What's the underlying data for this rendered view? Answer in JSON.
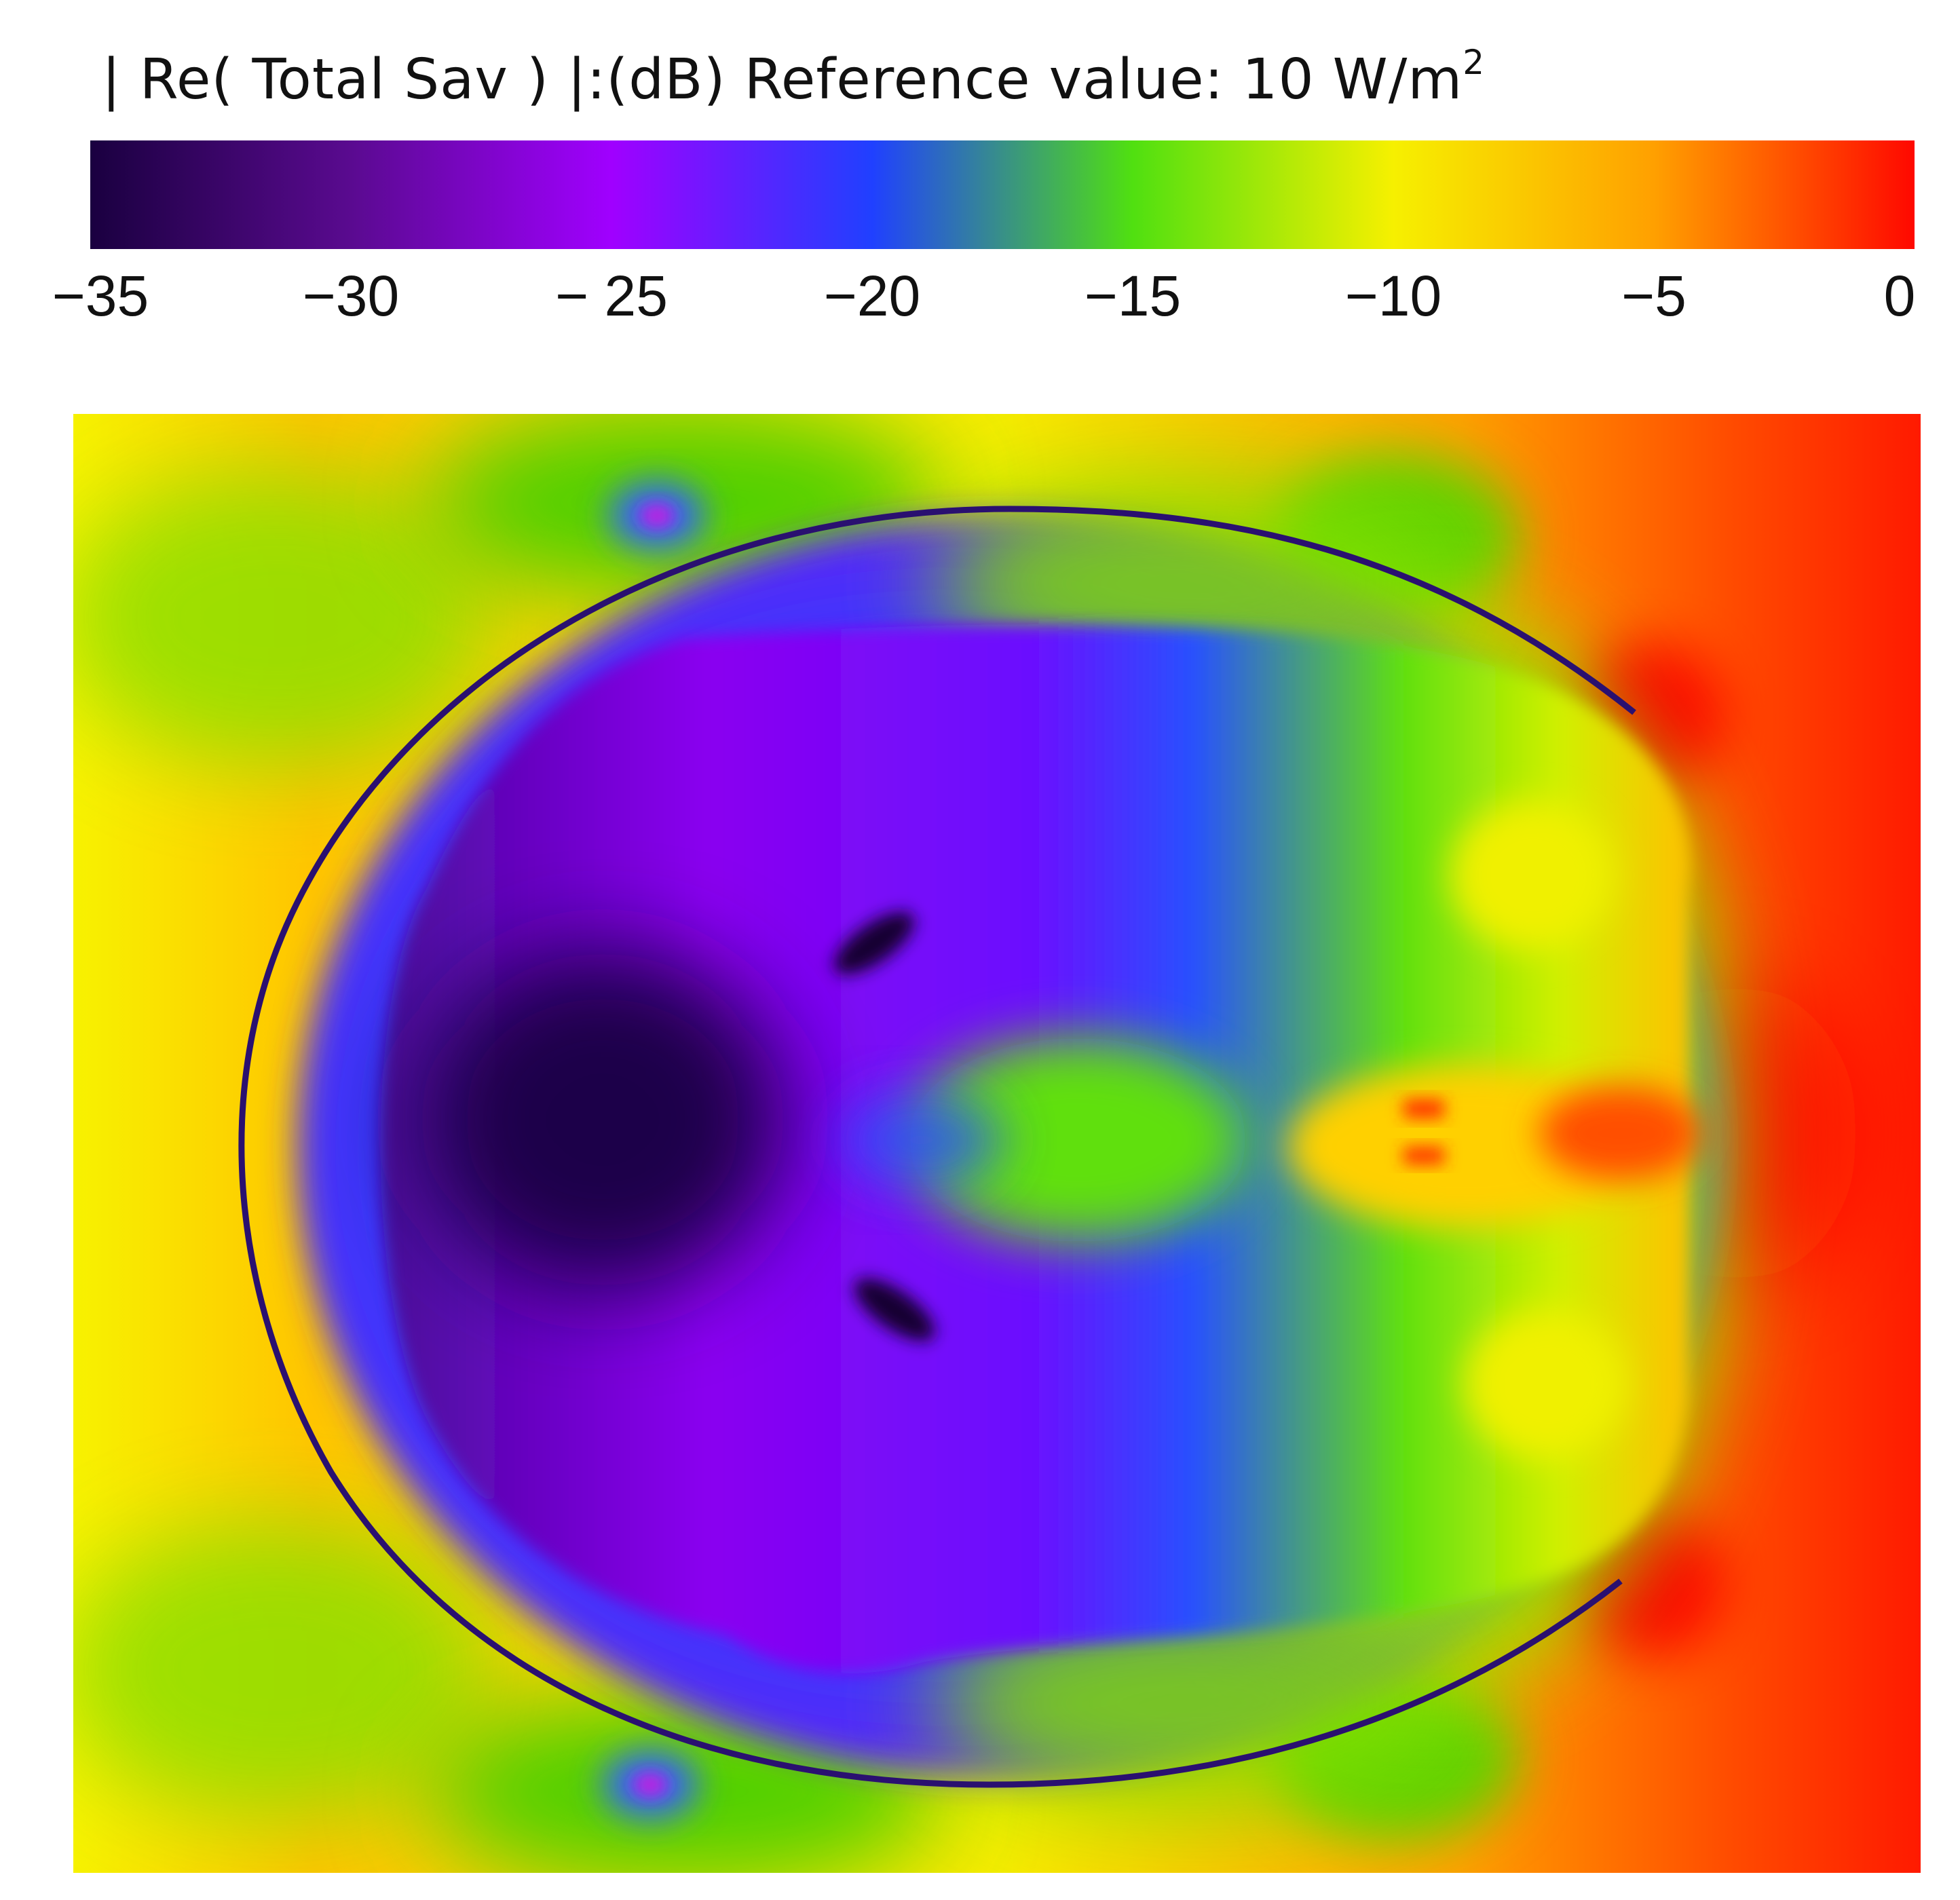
{
  "colorbar": {
    "title_main": "| Re( Total Sav ) |:(dB) Reference value: 10 W/m",
    "title_sup": "2",
    "range": [
      -35,
      0
    ],
    "tick_labels": [
      "−35",
      "−30",
      "− 25",
      "−20",
      "−15",
      "−10",
      "−5",
      "0"
    ],
    "colormap": [
      "#1a0040",
      "#5a0a90",
      "#a000ff",
      "#2040ff",
      "#50e010",
      "#f6f000",
      "#ffa000",
      "#ff0800"
    ]
  },
  "chart_data": {
    "type": "heatmap",
    "title": "| Re( Total Sav ) |:(dB) Reference value: 10 W/m2",
    "quantity": "| Re( Total Sav ) |",
    "unit": "dB",
    "reference_value": "10 W/m2",
    "colorbar_range": [
      -35,
      0
    ],
    "colorbar_ticks": [
      -35,
      -30,
      -25,
      -20,
      -15,
      -10,
      -5,
      0
    ],
    "description_of_field": "field map on head cross-section; highest levels (about 0 dB) at right edge, lowest (about -35 dB) in left interior region"
  }
}
